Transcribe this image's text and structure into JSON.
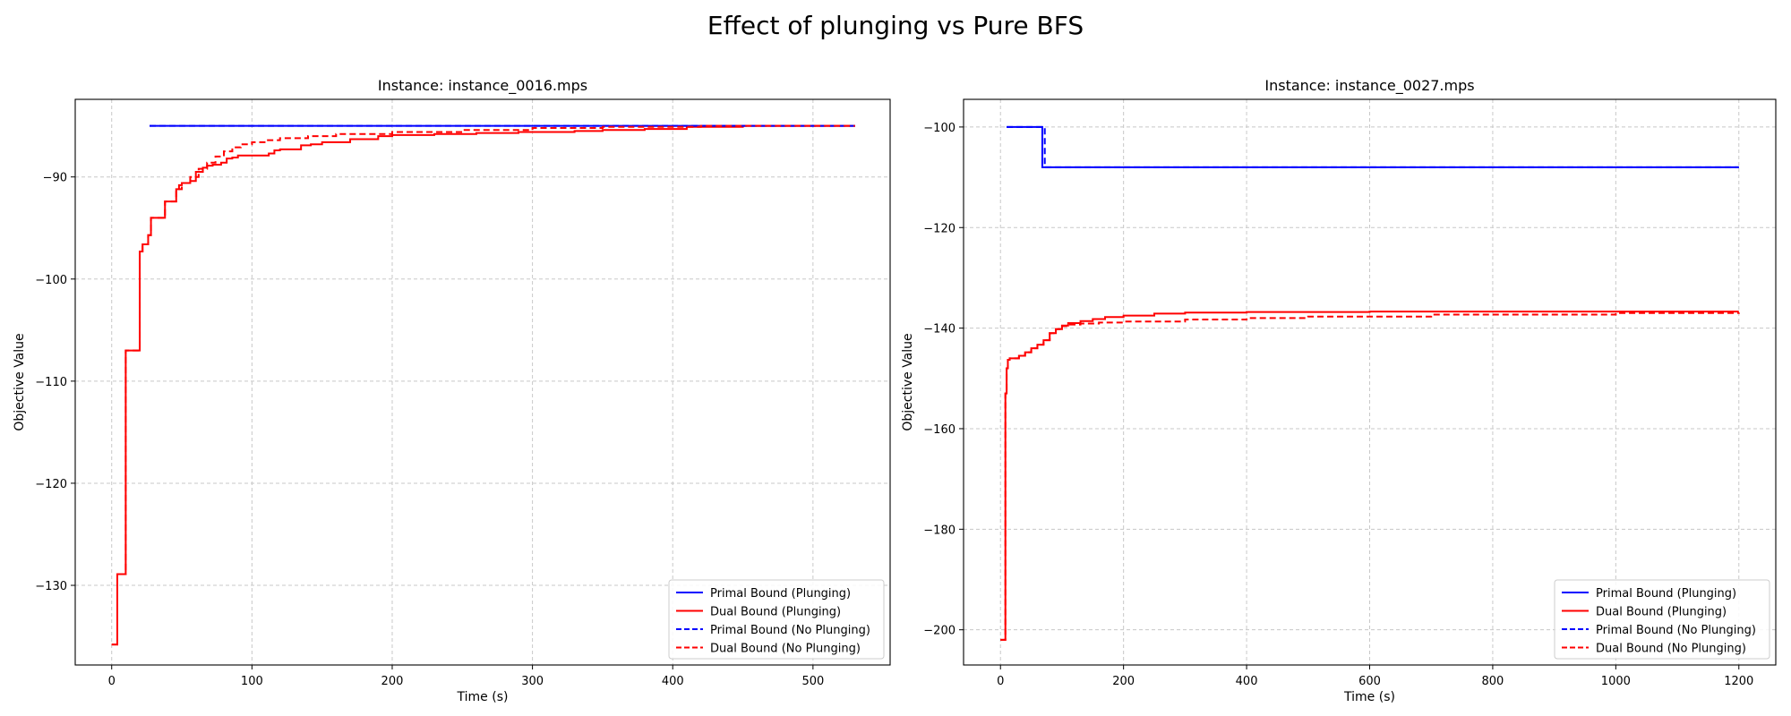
{
  "figure": {
    "title": "Effect of plunging vs Pure BFS"
  },
  "chart_data": [
    {
      "type": "line",
      "title": "Instance: instance_0016.mps",
      "xlabel": "Time (s)",
      "ylabel": "Objective Value",
      "xlim": [
        -26,
        555
      ],
      "ylim": [
        -137.8,
        -82.4
      ],
      "xticks": [
        0,
        100,
        200,
        300,
        400,
        500
      ],
      "yticks": [
        -130,
        -120,
        -110,
        -100,
        -90
      ],
      "grid": true,
      "legend_position": "lower right",
      "series": [
        {
          "name": "Primal Bound (Plunging)",
          "color": "#0000ff",
          "style": "solid",
          "step": true,
          "x": [
            27,
            530
          ],
          "y": [
            -85.0,
            -85.0
          ]
        },
        {
          "name": "Dual Bound (Plunging)",
          "color": "#ff0000",
          "style": "solid",
          "step": true,
          "x": [
            0,
            4,
            10,
            20,
            22,
            26,
            28,
            38,
            46,
            48,
            50,
            56,
            60,
            65,
            68,
            72,
            78,
            82,
            86,
            90,
            112,
            116,
            120,
            135,
            142,
            150,
            170,
            190,
            200,
            230,
            260,
            290,
            330,
            350,
            380,
            410,
            450,
            530
          ],
          "y": [
            -135.8,
            -128.9,
            -107.0,
            -97.3,
            -96.6,
            -95.7,
            -94.0,
            -92.4,
            -91.2,
            -90.8,
            -90.6,
            -90.4,
            -89.5,
            -89.1,
            -88.9,
            -88.8,
            -88.6,
            -88.2,
            -88.1,
            -87.9,
            -87.7,
            -87.4,
            -87.3,
            -86.9,
            -86.8,
            -86.6,
            -86.3,
            -86.0,
            -85.9,
            -85.8,
            -85.7,
            -85.6,
            -85.5,
            -85.4,
            -85.3,
            -85.1,
            -85.0,
            -85.0
          ]
        },
        {
          "name": "Primal Bound (No Plunging)",
          "color": "#0000ff",
          "style": "dashed",
          "step": true,
          "x": [
            27,
            530
          ],
          "y": [
            -85.0,
            -85.0
          ]
        },
        {
          "name": "Dual Bound (No Plunging)",
          "color": "#ff0000",
          "style": "dashed",
          "step": true,
          "x": [
            0,
            4,
            10,
            20,
            22,
            26,
            28,
            38,
            46,
            50,
            56,
            62,
            68,
            74,
            80,
            86,
            92,
            100,
            110,
            120,
            140,
            160,
            200,
            250,
            300,
            350,
            420,
            530
          ],
          "y": [
            -135.8,
            -128.9,
            -107.0,
            -97.3,
            -96.6,
            -95.7,
            -94.0,
            -92.4,
            -91.2,
            -90.6,
            -90.0,
            -89.2,
            -88.6,
            -88.0,
            -87.5,
            -87.1,
            -86.8,
            -86.6,
            -86.4,
            -86.2,
            -86.0,
            -85.8,
            -85.6,
            -85.4,
            -85.2,
            -85.1,
            -85.0,
            -85.0
          ]
        }
      ]
    },
    {
      "type": "line",
      "title": "Instance: instance_0027.mps",
      "xlabel": "Time (s)",
      "ylabel": "Objective Value",
      "xlim": [
        -60,
        1260
      ],
      "ylim": [
        -207.0,
        -94.5
      ],
      "xticks": [
        0,
        200,
        400,
        600,
        800,
        1000,
        1200
      ],
      "yticks": [
        -200,
        -180,
        -160,
        -140,
        -120,
        -100
      ],
      "grid": true,
      "legend_position": "lower right",
      "series": [
        {
          "name": "Primal Bound (Plunging)",
          "color": "#0000ff",
          "style": "solid",
          "step": true,
          "x": [
            10,
            68,
            1200
          ],
          "y": [
            -100.0,
            -108.0,
            -108.0
          ]
        },
        {
          "name": "Dual Bound (Plunging)",
          "color": "#ff0000",
          "style": "solid",
          "step": true,
          "x": [
            0,
            8,
            10,
            12,
            15,
            30,
            40,
            50,
            60,
            70,
            80,
            90,
            100,
            110,
            130,
            150,
            170,
            200,
            250,
            300,
            400,
            600,
            1200
          ],
          "y": [
            -202.0,
            -153.0,
            -148.0,
            -146.3,
            -146.0,
            -145.5,
            -144.8,
            -144.0,
            -143.3,
            -142.4,
            -141.0,
            -140.2,
            -139.5,
            -139.0,
            -138.6,
            -138.2,
            -137.8,
            -137.5,
            -137.1,
            -136.9,
            -136.8,
            -136.7,
            -136.7
          ]
        },
        {
          "name": "Primal Bound (No Plunging)",
          "color": "#0000ff",
          "style": "dashed",
          "step": true,
          "x": [
            10,
            72,
            1200
          ],
          "y": [
            -100.0,
            -108.0,
            -108.0
          ]
        },
        {
          "name": "Dual Bound (No Plunging)",
          "color": "#ff0000",
          "style": "dashed",
          "step": true,
          "x": [
            0,
            8,
            10,
            12,
            15,
            30,
            40,
            50,
            60,
            70,
            80,
            90,
            100,
            110,
            130,
            160,
            200,
            300,
            400,
            500,
            700,
            1000,
            1200
          ],
          "y": [
            -202.0,
            -153.0,
            -148.0,
            -146.3,
            -146.0,
            -145.5,
            -144.8,
            -144.0,
            -143.3,
            -142.4,
            -141.0,
            -140.2,
            -139.6,
            -139.3,
            -139.1,
            -138.9,
            -138.7,
            -138.3,
            -138.0,
            -137.7,
            -137.3,
            -137.0,
            -136.9
          ]
        }
      ]
    }
  ]
}
